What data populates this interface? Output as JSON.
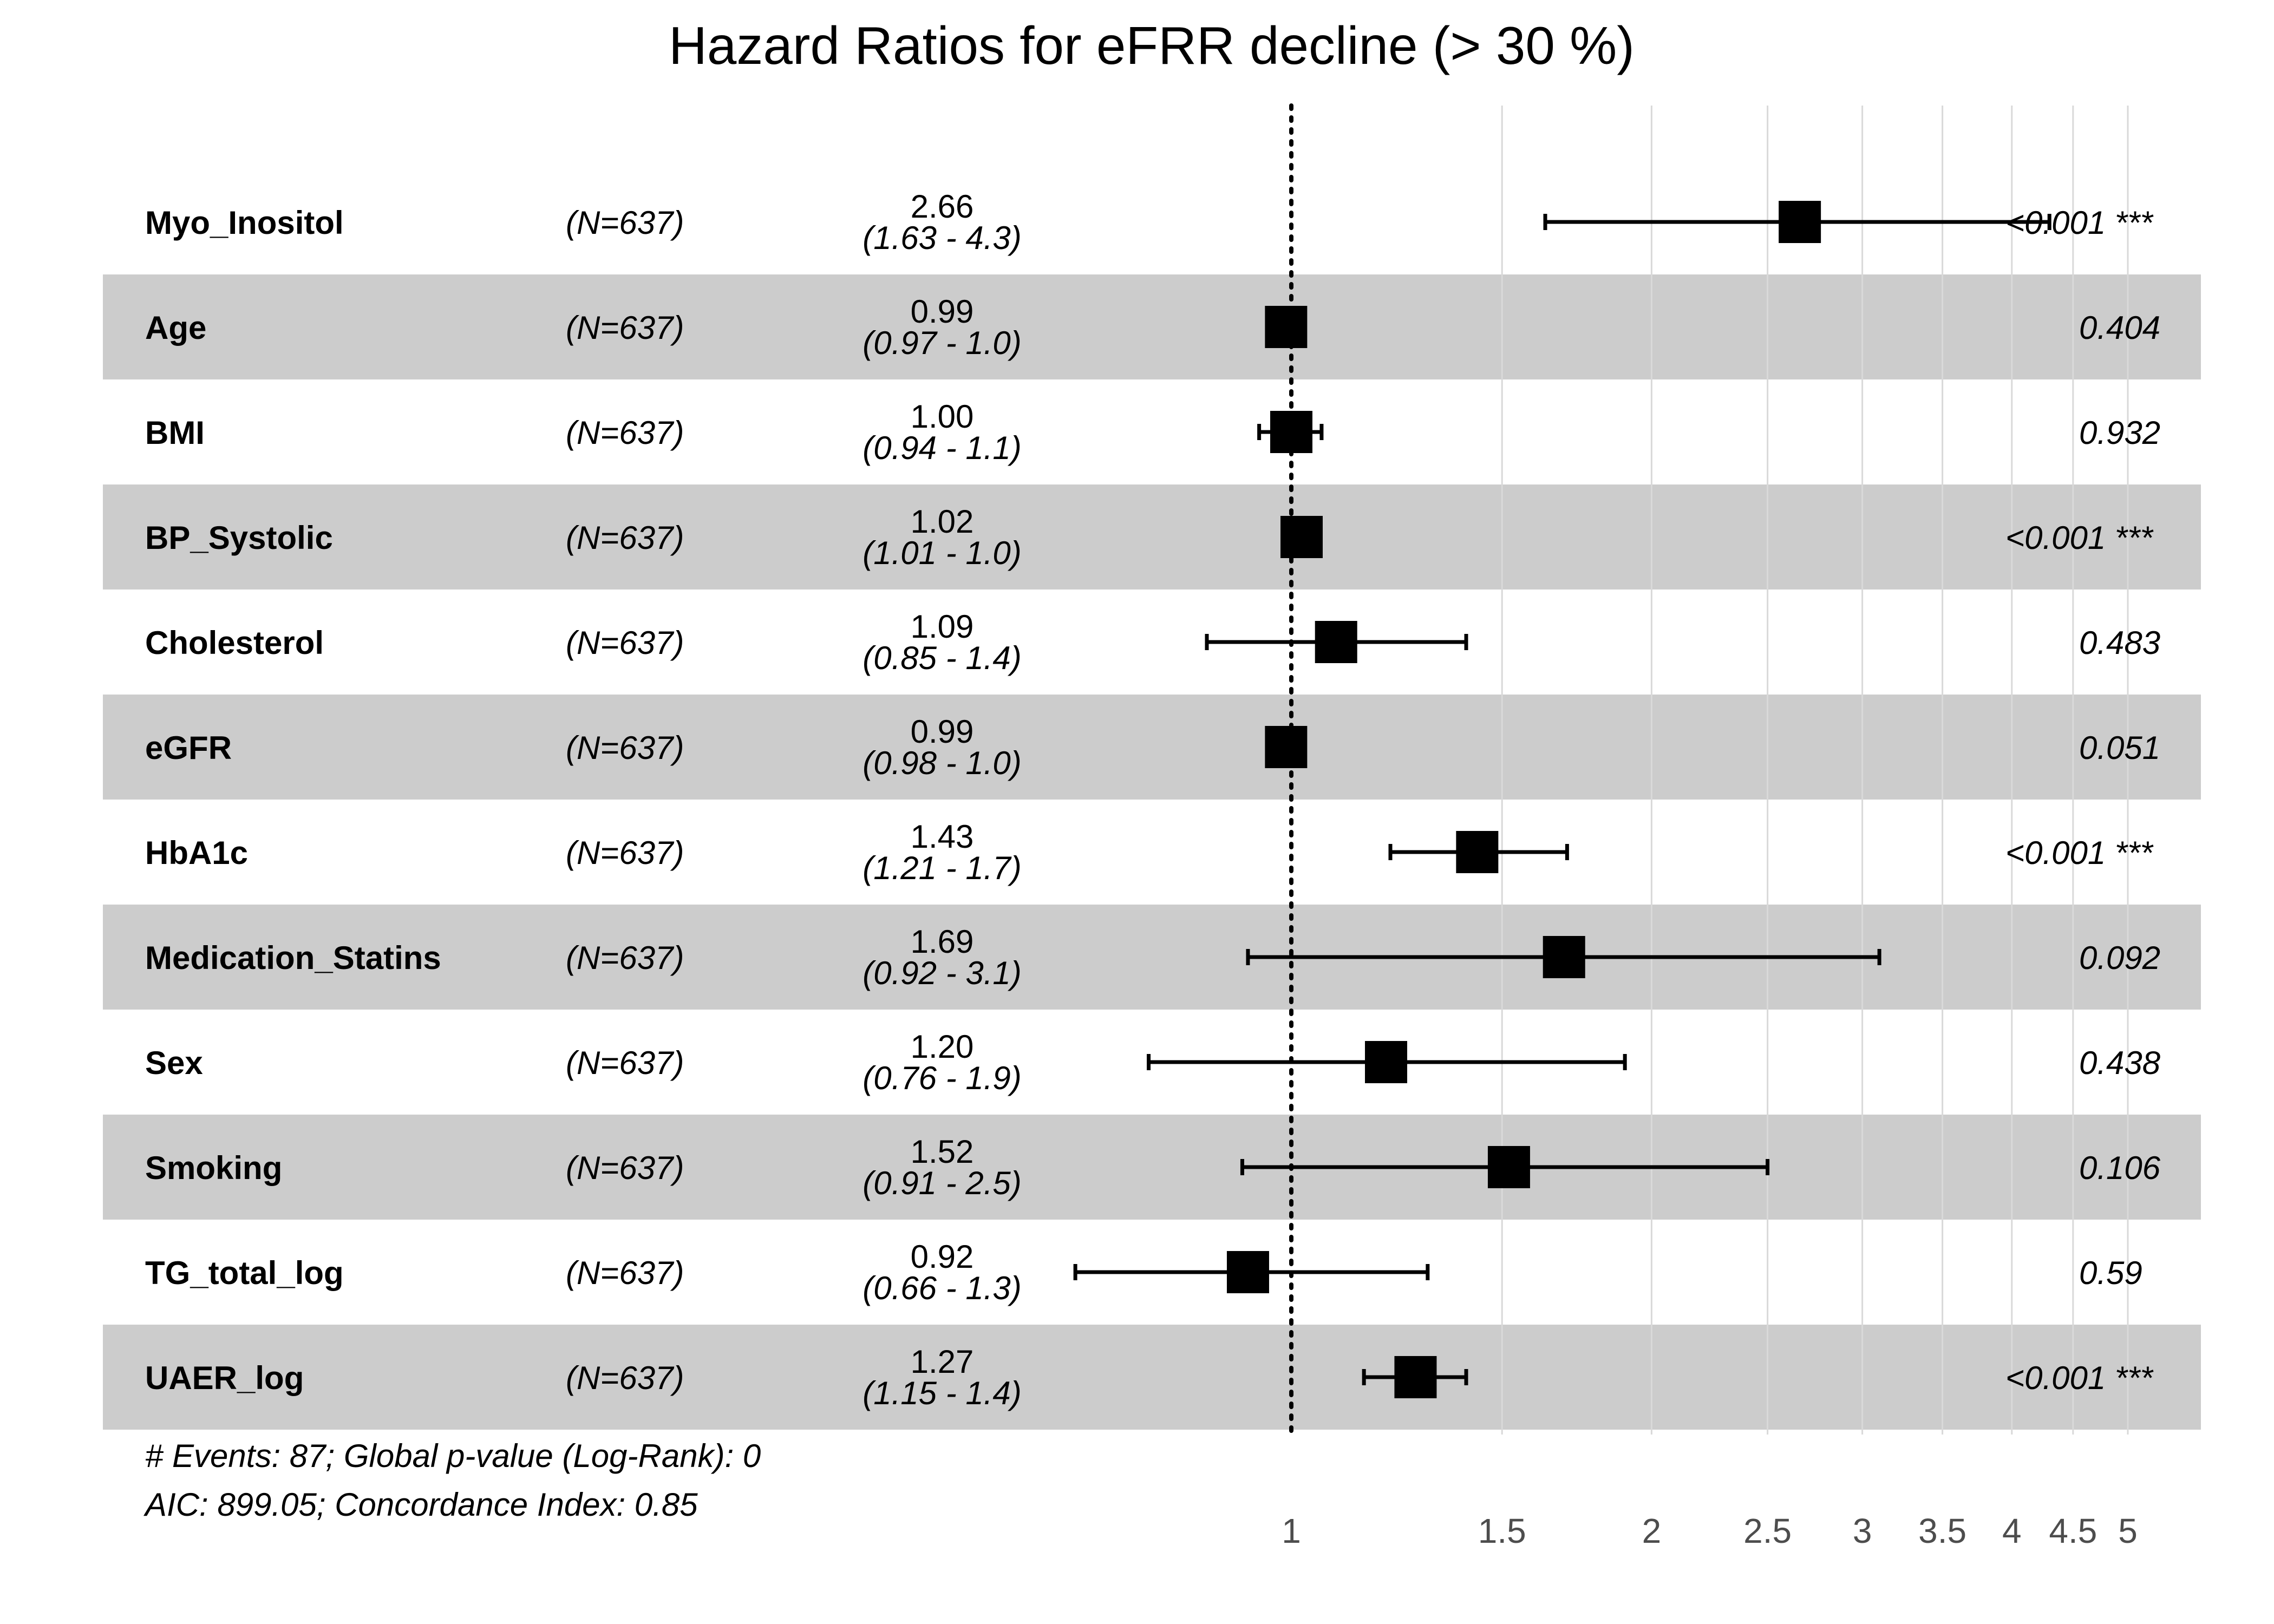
{
  "chart_data": {
    "type": "forest",
    "title": "Hazard Ratios for eFRR decline (> 30 %)",
    "x_scale": "log",
    "xlim": [
      0.7,
      5.5
    ],
    "reference_line": 1,
    "x_ticks": [
      1,
      1.5,
      2,
      2.5,
      3,
      3.5,
      4,
      4.5,
      5
    ],
    "x_tick_labels": [
      "1",
      "1.5",
      "2",
      "2.5",
      "3",
      "3.5",
      "4",
      "4.5",
      "5"
    ],
    "rows": [
      {
        "variable": "Myo_Inositol",
        "n": "(N=637)",
        "hr": 2.66,
        "lower": 1.63,
        "upper": 4.3,
        "hr_label": "2.66",
        "ci_label": "(1.63 - 4.3)",
        "p_label": "<0.001 ***",
        "shaded": false
      },
      {
        "variable": "Age",
        "n": "(N=637)",
        "hr": 0.99,
        "lower": 0.97,
        "upper": 1.0,
        "hr_label": "0.99",
        "ci_label": "(0.97 - 1.0)",
        "p_label": "0.404",
        "shaded": true
      },
      {
        "variable": "BMI",
        "n": "(N=637)",
        "hr": 1.0,
        "lower": 0.94,
        "upper": 1.06,
        "hr_label": "1.00",
        "ci_label": "(0.94 - 1.1)",
        "p_label": "0.932",
        "shaded": false
      },
      {
        "variable": "BP_Systolic",
        "n": "(N=637)",
        "hr": 1.02,
        "lower": 1.01,
        "upper": 1.03,
        "hr_label": "1.02",
        "ci_label": "(1.01 - 1.0)",
        "p_label": "<0.001 ***",
        "shaded": true
      },
      {
        "variable": "Cholesterol",
        "n": "(N=637)",
        "hr": 1.09,
        "lower": 0.85,
        "upper": 1.4,
        "hr_label": "1.09",
        "ci_label": "(0.85 - 1.4)",
        "p_label": "0.483",
        "shaded": false
      },
      {
        "variable": "eGFR",
        "n": "(N=637)",
        "hr": 0.99,
        "lower": 0.98,
        "upper": 1.0,
        "hr_label": "0.99",
        "ci_label": "(0.98 - 1.0)",
        "p_label": "0.051",
        "shaded": true
      },
      {
        "variable": "HbA1c",
        "n": "(N=637)",
        "hr": 1.43,
        "lower": 1.21,
        "upper": 1.7,
        "hr_label": "1.43",
        "ci_label": "(1.21 - 1.7)",
        "p_label": "<0.001 ***",
        "shaded": false
      },
      {
        "variable": "Medication_Statins",
        "n": "(N=637)",
        "hr": 1.69,
        "lower": 0.92,
        "upper": 3.1,
        "hr_label": "1.69",
        "ci_label": "(0.92 - 3.1)",
        "p_label": "0.092",
        "shaded": true
      },
      {
        "variable": "Sex",
        "n": "(N=637)",
        "hr": 1.2,
        "lower": 0.76,
        "upper": 1.9,
        "hr_label": "1.20",
        "ci_label": "(0.76 - 1.9)",
        "p_label": "0.438",
        "shaded": false
      },
      {
        "variable": "Smoking",
        "n": "(N=637)",
        "hr": 1.52,
        "lower": 0.91,
        "upper": 2.5,
        "hr_label": "1.52",
        "ci_label": "(0.91 - 2.5)",
        "p_label": "0.106",
        "shaded": true
      },
      {
        "variable": "TG_total_log",
        "n": "(N=637)",
        "hr": 0.92,
        "lower": 0.66,
        "upper": 1.3,
        "hr_label": "0.92",
        "ci_label": "(0.66 - 1.3)",
        "p_label": "0.59",
        "shaded": false
      },
      {
        "variable": "UAER_log",
        "n": "(N=637)",
        "hr": 1.27,
        "lower": 1.15,
        "upper": 1.4,
        "hr_label": "1.27",
        "ci_label": "(1.15 - 1.4)",
        "p_label": "<0.001 ***",
        "shaded": true
      }
    ],
    "footer": [
      "# Events: 87; Global p-value (Log-Rank): 0",
      "AIC: 899.05; Concordance Index: 0.85"
    ],
    "colors": {
      "band": "#cccccc",
      "marks": "#000000",
      "grid": "#d9d9d9",
      "tick_text": "#4d4d4d"
    }
  }
}
